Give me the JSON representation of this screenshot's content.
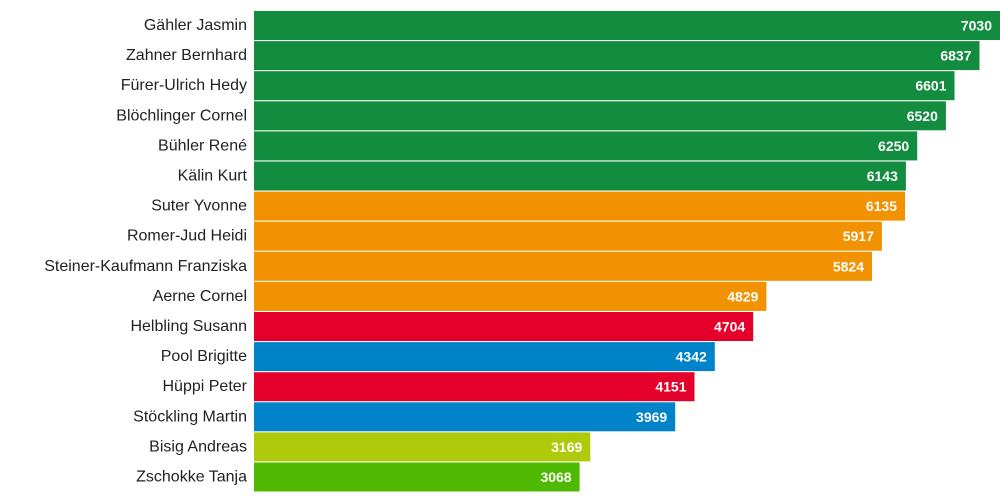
{
  "chart_data": {
    "type": "bar",
    "orientation": "horizontal",
    "categories": [
      "Gähler Jasmin",
      "Zahner Bernhard",
      "Fürer-Ulrich Hedy",
      "Blöchlinger Cornel",
      "Bühler René",
      "Kälin Kurt",
      "Suter Yvonne",
      "Romer-Jud Heidi",
      "Steiner-Kaufmann Franziska",
      "Aerne Cornel",
      "Helbling Susann",
      "Pool Brigitte",
      "Hüppi Peter",
      "Stöckling Martin",
      "Bisig Andreas",
      "Zschokke Tanja"
    ],
    "values": [
      7030,
      6837,
      6601,
      6520,
      6250,
      6143,
      6135,
      5917,
      5824,
      4829,
      4704,
      4342,
      4151,
      3969,
      3169,
      3068
    ],
    "value_labels": [
      "7030",
      "6837",
      "6601",
      "6520",
      "6250",
      "6143",
      "6135",
      "5917",
      "5824",
      "4829",
      "4704",
      "4342",
      "4151",
      "3969",
      "3169",
      "3068"
    ],
    "bar_colors": [
      "#128c3e",
      "#128c3e",
      "#128c3e",
      "#128c3e",
      "#128c3e",
      "#128c3e",
      "#f39200",
      "#f39200",
      "#f39200",
      "#f39200",
      "#e4002b",
      "#0083c8",
      "#e4002b",
      "#0083c8",
      "#afca0b",
      "#4fb800"
    ],
    "xlim": [
      0,
      7030
    ],
    "title": "",
    "xlabel": "",
    "ylabel": "",
    "grid": false,
    "legend": false
  }
}
